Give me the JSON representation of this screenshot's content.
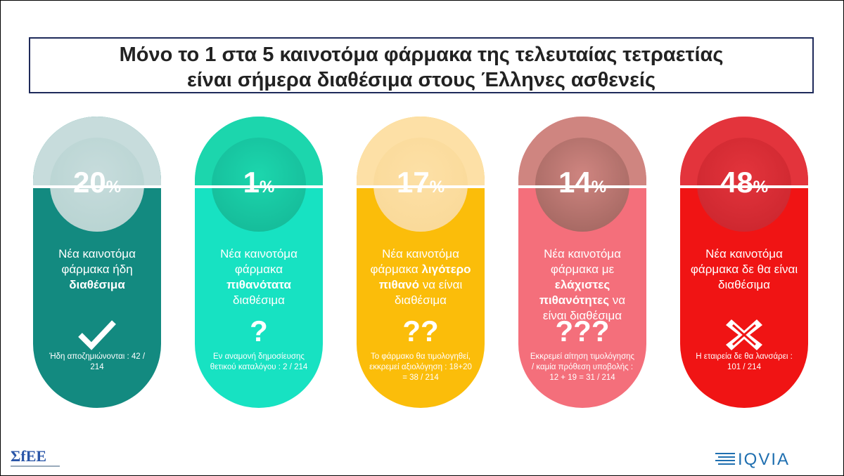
{
  "title": {
    "lines": [
      "Μόνο το 1 στα 5 καινοτόμα φάρμακα της τελευταίας τετραετίας",
      "είναι σήμερα διαθέσιμα στους Έλληνες ασθενείς"
    ]
  },
  "cards": [
    {
      "value": 20,
      "unit": "%",
      "description": [
        {
          "text": "Νέα καινοτόμα φάρμακα ήδη "
        },
        {
          "text": "διαθέσιμα",
          "bold": true
        }
      ],
      "note": "Ήδη αποζημιώνονται : 42 / 214",
      "top_color": "#c7dcdc",
      "bottom_color": "#138a80",
      "circle_color": "#b5d2d0"
    },
    {
      "value": 1,
      "unit": "%",
      "description": [
        {
          "text": "Νέα καινοτόμα φάρμακα "
        },
        {
          "text": "πιθανότατα",
          "bold": true
        },
        {
          "text": " διαθέσιμα"
        }
      ],
      "symbol": "?",
      "note": "Εν αναμονή δημοσίευσης θετικού καταλόγου : 2 / 214",
      "top_color": "#1cd6ad",
      "bottom_color": "#17e2c2",
      "circle_color": "#14b595"
    },
    {
      "value": 17,
      "unit": "%",
      "description": [
        {
          "text": "Νέα καινοτόμα φάρμακα "
        },
        {
          "text": "λιγότερο πιθανό",
          "bold": true
        },
        {
          "text": " να είναι διαθέσιμα"
        }
      ],
      "symbol": "??",
      "note": "Το φάρμακο θα τιμολογηθεί, εκκρεμεί αξιολόγηση : 18+20 = 38 / 214",
      "top_color": "#fde0a6",
      "bottom_color": "#fbbd0a",
      "circle_color": "#f9d896"
    },
    {
      "value": 14,
      "unit": "%",
      "description": [
        {
          "text": "Νέα καινοτόμα φάρμακα με "
        },
        {
          "text": "ελάχιστες πιθανότητες",
          "bold": true
        },
        {
          "text": " να είναι διαθέσιμα"
        }
      ],
      "symbol": "???",
      "note": "Εκκρεμεί αίτηση τιμολόγησης / καμία πρόθεση υποβολής : 12 + 19 = 31 / 214",
      "top_color": "#cf8580",
      "bottom_color": "#f46f7b",
      "circle_color": "#9c625c"
    },
    {
      "value": 48,
      "unit": "%",
      "description": [
        {
          "text": "Νέα καινοτόμα φάρμακα δε θα είναι διαθέσιμα"
        }
      ],
      "note": "Η εταιρεία δε θα λανσάρει : 101 / 214",
      "top_color": "#e3343c",
      "bottom_color": "#f01414",
      "circle_color": "#c8242c"
    }
  ],
  "footer": {
    "left_logo": "ΣfEE",
    "right_logo": "IQVIA"
  }
}
